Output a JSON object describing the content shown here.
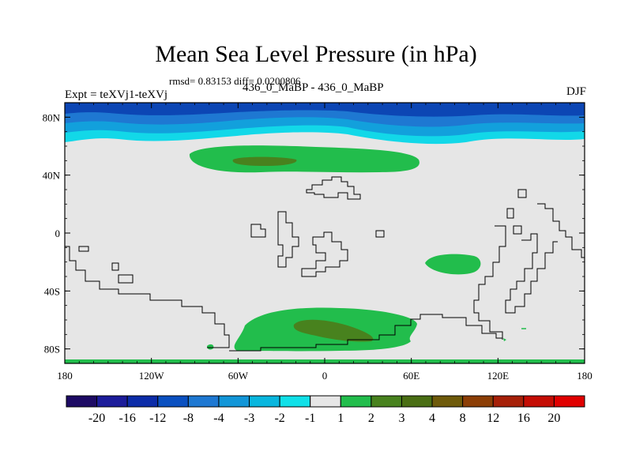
{
  "title": "Mean Sea Level Pressure (in hPa)",
  "stats": "rmsd= 0.83153 diff= 0.0200806",
  "experiment": "Expt = teXVj1-teXVj",
  "comparison": "436_0_MaBP - 436_0_MaBP",
  "season": "DJF",
  "x_ticks": [
    "180",
    "120W",
    "60W",
    "0",
    "60E",
    "120E",
    "180"
  ],
  "y_ticks": [
    "80N",
    "40N",
    "0",
    "40S",
    "80S"
  ],
  "colorbar": {
    "labels": [
      "-20",
      "-16",
      "-12",
      "-8",
      "-4",
      "-3",
      "-2",
      "-1",
      "1",
      "2",
      "3",
      "4",
      "8",
      "12",
      "16",
      "20"
    ],
    "colors": [
      "#1d0a64",
      "#1c1c9a",
      "#0c2ca8",
      "#0a50c0",
      "#1e78d2",
      "#1296d8",
      "#08b6de",
      "#10e0e8",
      "#e6e6e6",
      "#22bd4c",
      "#48821e",
      "#4a6e14",
      "#6e5a0a",
      "#8c3e06",
      "#a62008",
      "#c40d04",
      "#e00000"
    ]
  },
  "map_colors": {
    "background": "#e6e6e6",
    "band_dark": "#0c46b4",
    "band_mid": "#1e78d2",
    "band_light": "#12a0dc",
    "band_cyan": "#12d8e8",
    "positive_1_2": "#22bd4c",
    "positive_2_3": "#48821e"
  }
}
